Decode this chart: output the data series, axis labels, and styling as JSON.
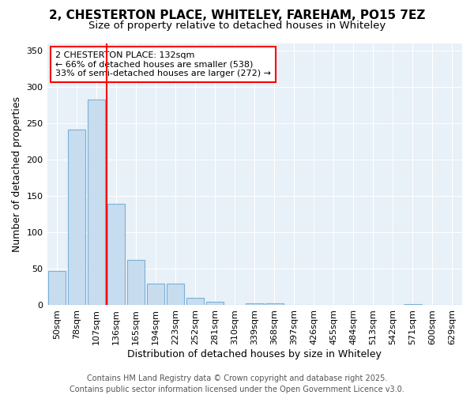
{
  "title": "2, CHESTERTON PLACE, WHITELEY, FAREHAM, PO15 7EZ",
  "subtitle": "Size of property relative to detached houses in Whiteley",
  "xlabel": "Distribution of detached houses by size in Whiteley",
  "ylabel": "Number of detached properties",
  "categories": [
    "50sqm",
    "78sqm",
    "107sqm",
    "136sqm",
    "165sqm",
    "194sqm",
    "223sqm",
    "252sqm",
    "281sqm",
    "310sqm",
    "339sqm",
    "368sqm",
    "397sqm",
    "426sqm",
    "455sqm",
    "484sqm",
    "513sqm",
    "542sqm",
    "571sqm",
    "600sqm",
    "629sqm"
  ],
  "values": [
    47,
    242,
    283,
    140,
    62,
    30,
    30,
    10,
    5,
    0,
    3,
    3,
    0,
    0,
    0,
    0,
    0,
    0,
    2,
    0,
    0
  ],
  "bar_color": "#c8dcf0",
  "bar_edge_color": "#7ab0d4",
  "vline_color": "red",
  "vline_x_index": 3,
  "annotation_text": "2 CHESTERTON PLACE: 132sqm\n← 66% of detached houses are smaller (538)\n33% of semi-detached houses are larger (272) →",
  "ylim": [
    0,
    360
  ],
  "yticks": [
    0,
    50,
    100,
    150,
    200,
    250,
    300,
    350
  ],
  "fig_bg_color": "#ffffff",
  "plot_bg_color": "#e8f0f8",
  "grid_color": "#ffffff",
  "footer_text": "Contains HM Land Registry data © Crown copyright and database right 2025.\nContains public sector information licensed under the Open Government Licence v3.0.",
  "title_fontsize": 11,
  "subtitle_fontsize": 9.5,
  "axis_label_fontsize": 9,
  "tick_fontsize": 8,
  "annotation_fontsize": 8,
  "footer_fontsize": 7
}
